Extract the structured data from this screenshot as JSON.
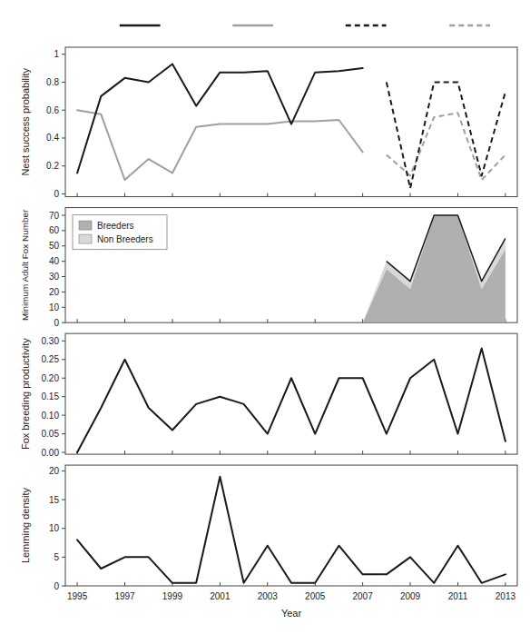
{
  "chart_data": [
    {
      "type": "line",
      "ylabel": "Nest success probability",
      "x": [
        1995,
        1996,
        1997,
        1998,
        1999,
        2000,
        2001,
        2002,
        2003,
        2004,
        2005,
        2006,
        2007,
        2008,
        2009,
        2010,
        2011,
        2012,
        2013
      ],
      "xlim": [
        1994.5,
        2013.5
      ],
      "xticks": [
        1995,
        1997,
        1999,
        2001,
        2003,
        2005,
        2007,
        2009,
        2011,
        2013
      ],
      "ylim": [
        -0.02,
        1.05
      ],
      "yticks": [
        0,
        0.2,
        0.4,
        0.6,
        0.8,
        1
      ],
      "tick_labels": "y",
      "legend": "top",
      "series": [
        {
          "color": "#1a1a1a",
          "line_style": "solid",
          "values": [
            0.15,
            0.7,
            0.83,
            0.8,
            0.93,
            0.63,
            0.87,
            0.87,
            0.88,
            0.5,
            0.87,
            0.88,
            0.9,
            null,
            null,
            null,
            null,
            null,
            null
          ]
        },
        {
          "color": "#a0a0a0",
          "line_style": "solid",
          "values": [
            0.6,
            0.57,
            0.1,
            0.25,
            0.15,
            0.48,
            0.5,
            0.5,
            0.5,
            0.52,
            0.52,
            0.53,
            0.3,
            null,
            null,
            null,
            null,
            null,
            null
          ]
        },
        {
          "color": "#1a1a1a",
          "line_style": "dashed",
          "values": [
            null,
            null,
            null,
            null,
            null,
            null,
            null,
            null,
            null,
            null,
            null,
            null,
            null,
            0.8,
            0.04,
            0.8,
            0.8,
            0.13,
            0.73
          ]
        },
        {
          "color": "#a0a0a0",
          "line_style": "dashed",
          "values": [
            null,
            null,
            null,
            null,
            null,
            null,
            null,
            null,
            null,
            null,
            null,
            null,
            null,
            0.28,
            0.13,
            0.55,
            0.58,
            0.1,
            0.28
          ]
        }
      ]
    },
    {
      "type": "area",
      "stacked": true,
      "ylabel": "Minimum Adult Fox Number",
      "x": [
        1995,
        1996,
        1997,
        1998,
        1999,
        2000,
        2001,
        2002,
        2003,
        2004,
        2005,
        2006,
        2007,
        2008,
        2009,
        2010,
        2011,
        2012,
        2013
      ],
      "xlim": [
        1994.5,
        2013.5
      ],
      "xticks": [
        1995,
        1997,
        1999,
        2001,
        2003,
        2005,
        2007,
        2009,
        2011,
        2013
      ],
      "ylim": [
        0,
        75
      ],
      "yticks": [
        0,
        10,
        20,
        30,
        40,
        50,
        60,
        70
      ],
      "tick_labels": "y",
      "legend": "upper left",
      "series": [
        {
          "name": "Breeders",
          "color": "#b0b0b0",
          "values": [
            0,
            0,
            0,
            0,
            0,
            0,
            0,
            0,
            0,
            0,
            0,
            0,
            0,
            35,
            22,
            70,
            70,
            22,
            48
          ]
        },
        {
          "name": "Non Breeders",
          "color": "#d8d8d8",
          "values": [
            0,
            0,
            0,
            0,
            0,
            0,
            0,
            0,
            0,
            0,
            0,
            0,
            0,
            5,
            5,
            0,
            0,
            5,
            7
          ]
        }
      ]
    },
    {
      "type": "line",
      "ylabel": "Fox breeding productivity",
      "x": [
        1995,
        1996,
        1997,
        1998,
        1999,
        2000,
        2001,
        2002,
        2003,
        2004,
        2005,
        2006,
        2007,
        2008,
        2009,
        2010,
        2011,
        2012,
        2013
      ],
      "xlim": [
        1994.5,
        2013.5
      ],
      "xticks": [
        1995,
        1997,
        1999,
        2001,
        2003,
        2005,
        2007,
        2009,
        2011,
        2013
      ],
      "ylim": [
        -0.005,
        0.32
      ],
      "yticks": [
        {
          "value": 0,
          "label": "0.00"
        },
        {
          "value": 0.05,
          "label": "0.05"
        },
        {
          "value": 0.1,
          "label": "0.10"
        },
        {
          "value": 0.15,
          "label": "0.15"
        },
        {
          "value": 0.2,
          "label": "0.20"
        },
        {
          "value": 0.25,
          "label": "0.25"
        },
        {
          "value": 0.3,
          "label": "0.30"
        }
      ],
      "tick_labels": "y",
      "series": [
        {
          "color": "#1a1a1a",
          "values": [
            0.0,
            0.12,
            0.25,
            0.12,
            0.06,
            0.13,
            0.15,
            0.13,
            0.05,
            0.2,
            0.05,
            0.2,
            0.2,
            0.05,
            0.2,
            0.25,
            0.05,
            0.28,
            0.03
          ]
        }
      ]
    },
    {
      "type": "line",
      "ylabel": "Lemming density",
      "xlabel": "Year",
      "x": [
        1995,
        1996,
        1997,
        1998,
        1999,
        2000,
        2001,
        2002,
        2003,
        2004,
        2005,
        2006,
        2007,
        2008,
        2009,
        2010,
        2011,
        2012,
        2013
      ],
      "xlim": [
        1994.5,
        2013.5
      ],
      "xticks": [
        1995,
        1997,
        1999,
        2001,
        2003,
        2005,
        2007,
        2009,
        2011,
        2013
      ],
      "ylim": [
        0,
        21
      ],
      "yticks": [
        0,
        5,
        10,
        15,
        20
      ],
      "series": [
        {
          "color": "#1a1a1a",
          "values": [
            8.0,
            3.0,
            5.0,
            5.0,
            0.5,
            0.5,
            19.0,
            0.5,
            7.0,
            0.5,
            0.5,
            7.0,
            2.0,
            2.0,
            5.0,
            0.5,
            7.0,
            0.5,
            2.0
          ]
        }
      ]
    }
  ]
}
